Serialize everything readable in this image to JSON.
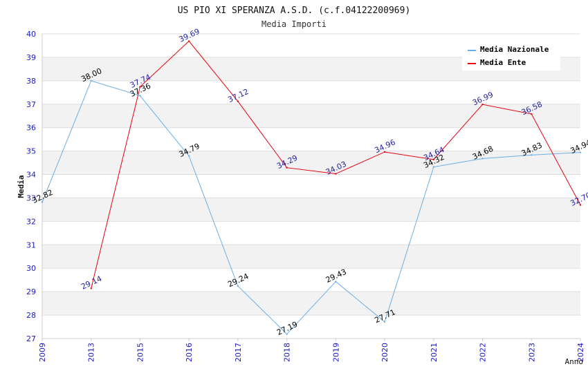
{
  "chart_data": {
    "type": "line",
    "title": "US PIO XI SPERANZA A.S.D. (c.f.04122200969)",
    "subtitle": "Media Importi",
    "xlabel": "Anno",
    "ylabel": "Media",
    "categories": [
      "2009",
      "2013",
      "2015",
      "2016",
      "2017",
      "2018",
      "2019",
      "2020",
      "2021",
      "2022",
      "2023",
      "2024"
    ],
    "ylim": [
      27,
      40
    ],
    "yticks": [
      "27",
      "28",
      "29",
      "30",
      "31",
      "32",
      "33",
      "34",
      "35",
      "36",
      "37",
      "38",
      "39",
      "40"
    ],
    "legend_position": "top-right",
    "series": [
      {
        "name": "Media Nazionale",
        "color": "#6aaee6",
        "label_color": "#000000",
        "values": [
          32.82,
          38.0,
          37.36,
          34.79,
          29.24,
          27.19,
          29.43,
          27.71,
          34.32,
          34.68,
          34.83,
          34.94
        ],
        "labels": [
          "32.82",
          "38.00",
          "37.36",
          "34.79",
          "29.24",
          "27.19",
          "29.43",
          "27.71",
          "34.32",
          "34.68",
          "34.83",
          "34.94"
        ]
      },
      {
        "name": "Media Ente",
        "color": "#e8000b",
        "label_color": "#1f1f9e",
        "values": [
          null,
          29.14,
          37.74,
          39.69,
          37.12,
          34.29,
          34.03,
          34.96,
          34.64,
          36.99,
          36.58,
          32.7
        ],
        "labels": [
          null,
          "29.14",
          "37.74",
          "39.69",
          "37.12",
          "34.29",
          "34.03",
          "34.96",
          "34.64",
          "36.99",
          "36.58",
          "32.70"
        ]
      }
    ]
  }
}
